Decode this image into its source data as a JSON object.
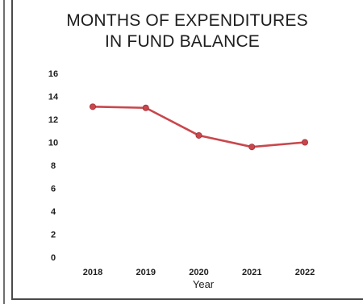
{
  "chart_data": {
    "type": "line",
    "title_line1": "MONTHS OF EXPENDITURES",
    "title_line2": "IN FUND BALANCE",
    "xlabel": "Year",
    "ylabel": "",
    "categories": [
      "2018",
      "2019",
      "2020",
      "2021",
      "2022"
    ],
    "values": [
      13.1,
      13.0,
      10.6,
      9.6,
      10.0
    ],
    "ylim": [
      0,
      16
    ],
    "yticks": [
      0,
      2,
      4,
      6,
      8,
      10,
      12,
      14,
      16
    ],
    "grid": false,
    "legend": "none",
    "line_color": "#c9474c",
    "marker_color": "#c9474c"
  }
}
